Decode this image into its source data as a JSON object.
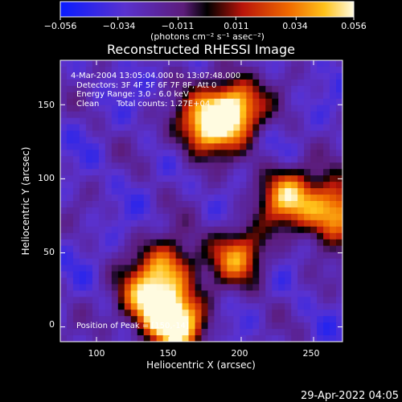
{
  "chart_data": {
    "type": "heatmap",
    "title": "Reconstructed RHESSI Image",
    "xlabel": "Heliocentric X (arcsec)",
    "ylabel": "Heliocentric Y (arcsec)",
    "xlim": [
      75,
      270
    ],
    "ylim": [
      -10,
      180
    ],
    "x_ticks": [
      "100",
      "150",
      "200",
      "250"
    ],
    "x_tick_values": [
      100,
      150,
      200,
      250
    ],
    "y_ticks": [
      "0",
      "50",
      "100",
      "150"
    ],
    "y_tick_values": [
      0,
      50,
      100,
      150
    ],
    "colorbar": {
      "ticks": [
        "−0.056",
        "−0.034",
        "−0.011",
        "0.011",
        "0.034",
        "0.056"
      ],
      "tick_values": [
        -0.056,
        -0.034,
        -0.011,
        0.011,
        0.034,
        0.056
      ],
      "range": [
        -0.056,
        0.056
      ],
      "units": "(photons cm⁻² s⁻¹ asec⁻²)"
    },
    "annotations": {
      "time_range": "4-Mar-2004 13:05:04.000 to 13:07:48.000",
      "detectors": "Detectors: 3F 4F 5F 6F 7F 8F, Att 0",
      "energy": "Energy Range: 3.0 - 6.0 keV",
      "method": "Clean",
      "total_counts": "Total counts: 1.27E+04",
      "peak": "Position of Peak = [150,-14]"
    },
    "bright_sources": [
      {
        "x": 195,
        "y": 148,
        "intensity": 0.056
      },
      {
        "x": 175,
        "y": 135,
        "intensity": 0.045
      },
      {
        "x": 265,
        "y": 78,
        "intensity": 0.05
      },
      {
        "x": 232,
        "y": 88,
        "intensity": 0.038
      },
      {
        "x": 198,
        "y": 48,
        "intensity": 0.028
      },
      {
        "x": 155,
        "y": 2,
        "intensity": 0.056
      },
      {
        "x": 135,
        "y": 18,
        "intensity": 0.04
      },
      {
        "x": 150,
        "y": 40,
        "intensity": 0.03
      }
    ]
  },
  "footer": {
    "date": "29-Apr-2022 04:05"
  }
}
